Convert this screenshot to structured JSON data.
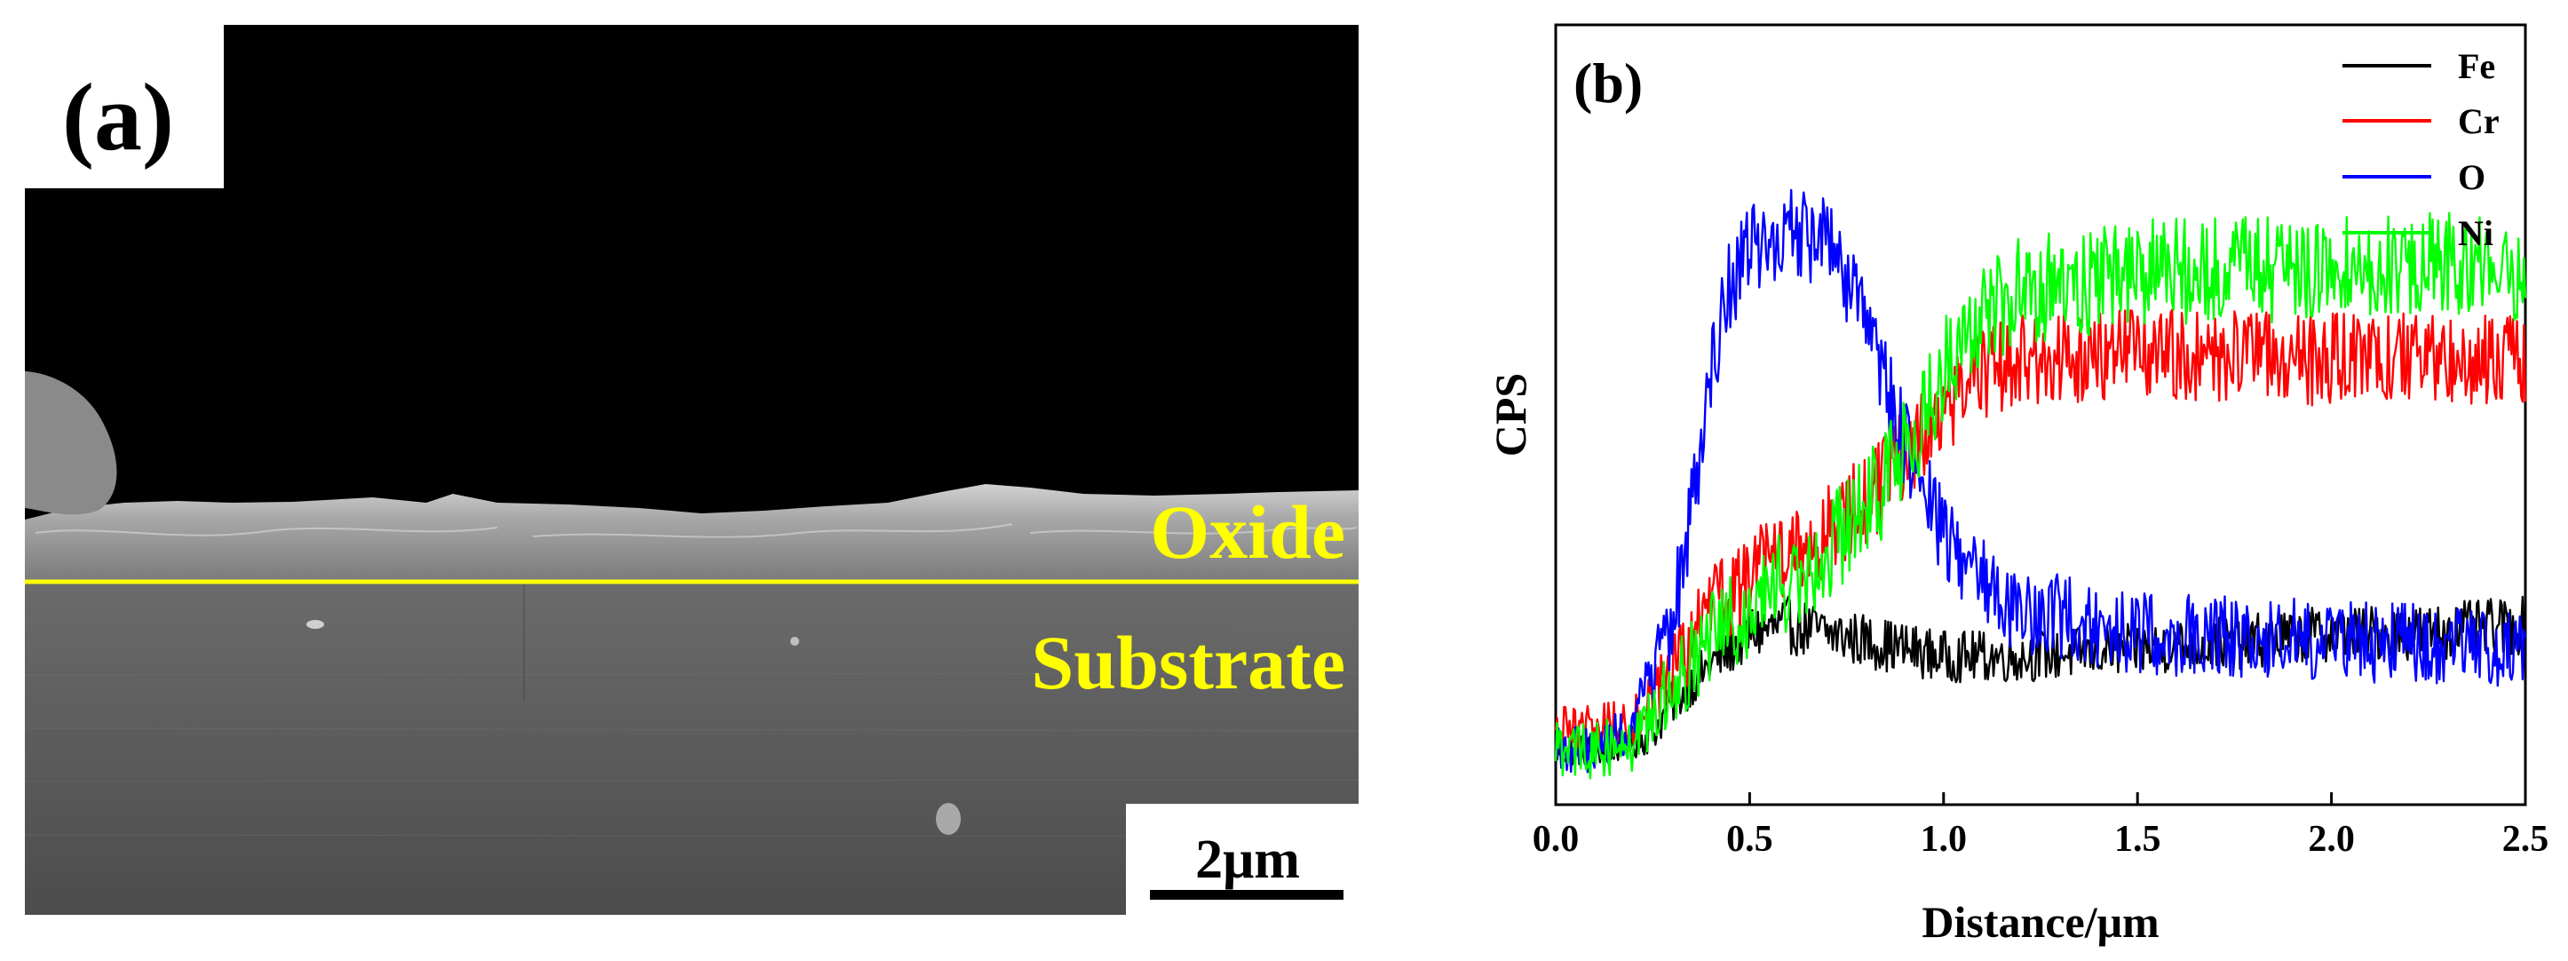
{
  "panel_a": {
    "label": "(a)",
    "oxide_label": "Oxide",
    "substrate_label": "Substrate",
    "scale_bar_label": "2μm",
    "interface_line_color": "#ffff00"
  },
  "chart_data": {
    "type": "line",
    "panel_label": "(b)",
    "title": "",
    "xlabel": "Distance/μm",
    "ylabel": "CPS",
    "xlim": [
      0.0,
      2.5
    ],
    "ylim": [
      0,
      100
    ],
    "x_ticks": [
      "0.0",
      "0.5",
      "1.0",
      "1.5",
      "2.0",
      "2.5"
    ],
    "grid": false,
    "legend_position": "top-right",
    "series": [
      {
        "name": "Fe",
        "color": "#000000",
        "noise": 4,
        "x": [
          0.0,
          0.1,
          0.2,
          0.25,
          0.3,
          0.4,
          0.5,
          0.6,
          0.8,
          1.0,
          1.2,
          1.5,
          1.8,
          2.0,
          2.2,
          2.5
        ],
        "y": [
          7,
          7,
          8,
          9,
          13,
          18,
          22,
          23,
          21,
          19,
          19,
          20,
          21,
          22,
          22,
          23
        ]
      },
      {
        "name": "Cr",
        "color": "#ff0000",
        "noise": 6,
        "x": [
          0.0,
          0.1,
          0.2,
          0.3,
          0.4,
          0.5,
          0.6,
          0.7,
          0.8,
          0.9,
          1.0,
          1.1,
          1.2,
          1.5,
          2.0,
          2.5
        ],
        "y": [
          9,
          10,
          11,
          17,
          25,
          29,
          32,
          35,
          39,
          45,
          51,
          55,
          57,
          58,
          57,
          57
        ]
      },
      {
        "name": "O",
        "color": "#0000ff",
        "noise": 6,
        "x": [
          0.0,
          0.1,
          0.2,
          0.3,
          0.35,
          0.4,
          0.45,
          0.5,
          0.6,
          0.7,
          0.8,
          0.9,
          1.0,
          1.1,
          1.2,
          1.5,
          2.0,
          2.5
        ],
        "y": [
          7,
          7,
          10,
          23,
          38,
          56,
          67,
          71,
          73,
          72,
          62,
          46,
          35,
          29,
          25,
          22,
          21,
          20
        ]
      },
      {
        "name": "Ni",
        "color": "#00ff00",
        "noise": 7,
        "x": [
          0.0,
          0.1,
          0.2,
          0.3,
          0.4,
          0.5,
          0.6,
          0.7,
          0.8,
          0.9,
          1.0,
          1.1,
          1.2,
          1.5,
          2.0,
          2.5
        ],
        "y": [
          7,
          7,
          8,
          15,
          21,
          25,
          29,
          33,
          38,
          45,
          56,
          63,
          66,
          68,
          69,
          69
        ]
      }
    ]
  }
}
